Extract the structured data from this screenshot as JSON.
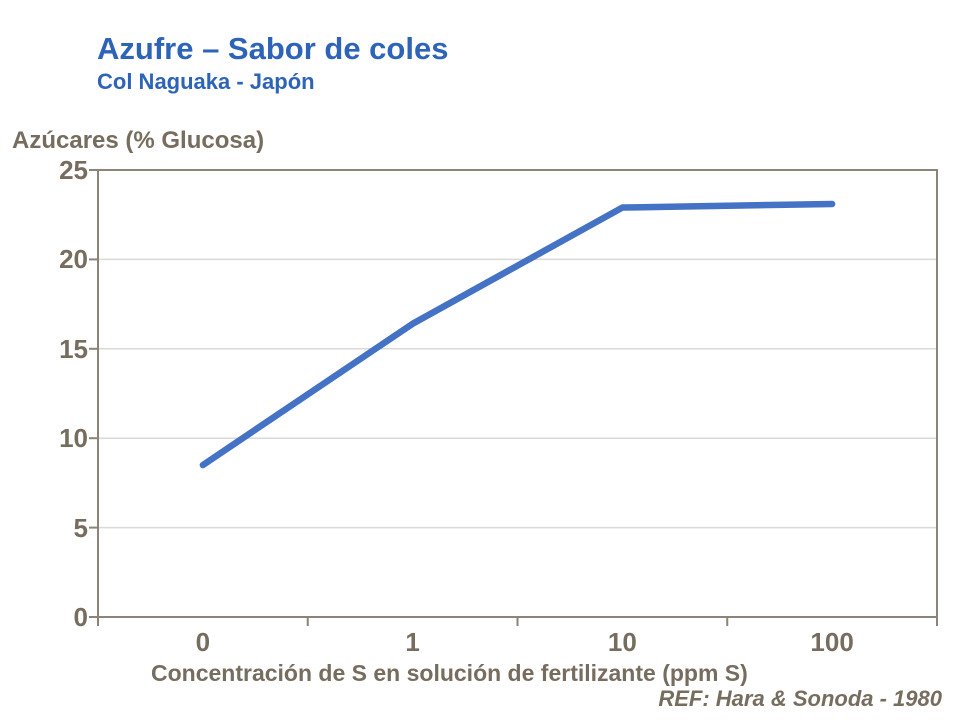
{
  "slide": {
    "title": "Azufre – Sabor de coles",
    "subtitle": "Col Naguaka - Japón",
    "reference": "REF: Hara & Sonoda - 1980"
  },
  "colors": {
    "title_blue": "#2e64b7",
    "line_blue": "#4472c4",
    "axis_text": "#766d5f",
    "axis_line": "#8b8477",
    "gridline": "#dcd9d4",
    "background": "#ffffff"
  },
  "chart_data": {
    "type": "line",
    "categories": [
      "0",
      "1",
      "10",
      "100"
    ],
    "series": [
      {
        "name": "Azúcares (% Glucosa)",
        "values": [
          8.5,
          16.4,
          22.9,
          23.1
        ]
      }
    ],
    "title": "",
    "xlabel": "Concentración de S en solución de fertilizante (ppm S)",
    "ylabel": "Azúcares (% Glucosa)",
    "ylim": [
      0,
      25
    ],
    "yticks": [
      0,
      5,
      10,
      15,
      20,
      25
    ],
    "x_axis_type": "categorical",
    "grid": true,
    "legend_position": "none"
  }
}
